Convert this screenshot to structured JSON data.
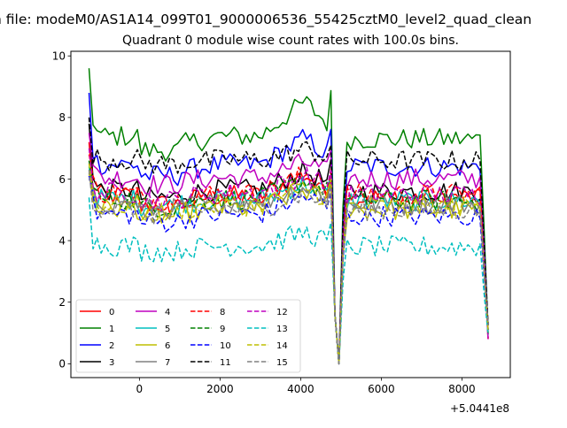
{
  "figure": {
    "suptitle": "n file: modeM0/AS1A14_099T01_9000006536_55425cztM0_level2_quad_clean"
  },
  "chart_data": {
    "type": "line",
    "title": "Quadrant 0 module wise count rates with 100.0s bins.",
    "xlabel": "",
    "ylabel": "",
    "x_offset_label": "+5.0441e8",
    "xlim": [
      -1700,
      9200
    ],
    "ylim": [
      -0.45,
      10.15
    ],
    "xticks": [
      0,
      2000,
      4000,
      6000,
      8000
    ],
    "xtick_labels": [
      "0",
      "2000",
      "4000",
      "6000",
      "8000"
    ],
    "yticks": [
      0,
      2,
      4,
      6,
      8,
      10
    ],
    "ytick_labels": [
      "0",
      "2",
      "4",
      "6",
      "8",
      "10"
    ],
    "grid": false,
    "legend_location": "lower-left",
    "x_start": -1250,
    "x_step": 100,
    "x_end": 8650,
    "series": [
      {
        "name": "0",
        "color": "#ff0000",
        "dash": "solid",
        "start": 7.2,
        "base": 5.4,
        "peak": 0.8
      },
      {
        "name": "1",
        "color": "#008000",
        "dash": "solid",
        "start": 9.6,
        "base": 7.3,
        "peak": 1.3
      },
      {
        "name": "2",
        "color": "#0000ff",
        "dash": "solid",
        "start": 8.8,
        "base": 6.4,
        "peak": 1.0
      },
      {
        "name": "3",
        "color": "#000000",
        "dash": "solid",
        "start": 7.8,
        "base": 5.6,
        "peak": 0.7
      },
      {
        "name": "4",
        "color": "#bf00bf",
        "dash": "solid",
        "start": 7.5,
        "base": 6.0,
        "peak": 0.6
      },
      {
        "name": "5",
        "color": "#00bfbf",
        "dash": "solid",
        "start": 6.4,
        "base": 5.3,
        "peak": 0.6
      },
      {
        "name": "6",
        "color": "#bfbf00",
        "dash": "solid",
        "start": 6.2,
        "base": 5.0,
        "peak": 0.7
      },
      {
        "name": "7",
        "color": "#808080",
        "dash": "solid",
        "start": 6.0,
        "base": 5.2,
        "peak": 0.6
      },
      {
        "name": "8",
        "color": "#ff0000",
        "dash": "dashed",
        "start": 6.8,
        "base": 5.5,
        "peak": 0.7
      },
      {
        "name": "9",
        "color": "#008000",
        "dash": "dashed",
        "start": 6.6,
        "base": 5.3,
        "peak": 0.7
      },
      {
        "name": "10",
        "color": "#0000ff",
        "dash": "dashed",
        "start": 6.1,
        "base": 4.8,
        "peak": 0.7
      },
      {
        "name": "11",
        "color": "#000000",
        "dash": "dashed",
        "start": 8.0,
        "base": 6.6,
        "peak": 0.4
      },
      {
        "name": "12",
        "color": "#bf00bf",
        "dash": "dashed",
        "start": 7.0,
        "base": 5.5,
        "peak": 0.7
      },
      {
        "name": "13",
        "color": "#00bfbf",
        "dash": "dashed",
        "start": 5.4,
        "base": 3.8,
        "peak": 0.5
      },
      {
        "name": "14",
        "color": "#bfbf00",
        "dash": "dashed",
        "start": 6.5,
        "base": 5.1,
        "peak": 0.7
      },
      {
        "name": "15",
        "color": "#808080",
        "dash": "dashed",
        "start": 6.3,
        "base": 5.0,
        "peak": 0.6
      }
    ]
  }
}
